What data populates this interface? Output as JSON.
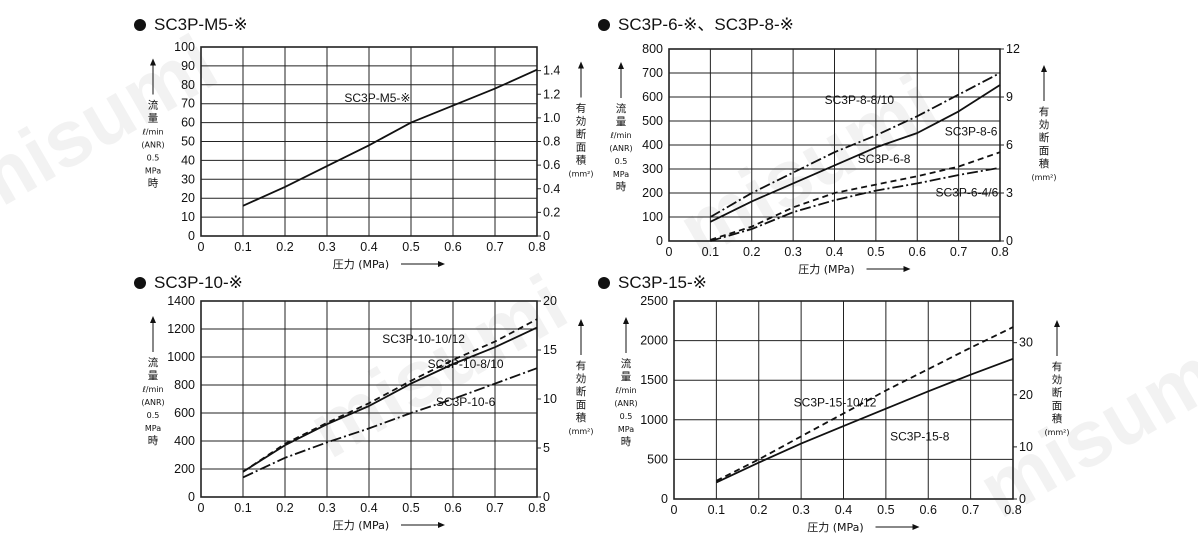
{
  "watermark": "misumi",
  "colors": {
    "line": "#111111",
    "grid": "#222222",
    "text": "#111111"
  },
  "chart_data": [
    {
      "type": "line",
      "title": "SC3P-M5-※",
      "xlabel": "圧力 (MPa)",
      "ylabel": [
        "流",
        "量",
        "ℓ/min",
        "(ANR)",
        "0.5",
        "MPa",
        "時"
      ],
      "y2label": [
        "有",
        "効",
        "断",
        "面",
        "積",
        "(mm²)"
      ],
      "xlim": [
        0,
        0.8
      ],
      "ylim": [
        0,
        100
      ],
      "y2lim": [
        0,
        1.6
      ],
      "xticks": [
        "0",
        "0.1",
        "0.2",
        "0.3",
        "0.4",
        "0.5",
        "0.6",
        "0.7",
        "0.8"
      ],
      "yticks": [
        "0",
        "10",
        "20",
        "30",
        "40",
        "50",
        "60",
        "70",
        "80",
        "90",
        "100"
      ],
      "y2ticks": [
        "0",
        "0.2",
        "0.4",
        "0.6",
        "0.8",
        "1.0",
        "1.2",
        "1.4"
      ],
      "grid": true,
      "series": [
        {
          "name": "SC3P-M5-※",
          "style": "solid",
          "x": [
            0.1,
            0.2,
            0.3,
            0.4,
            0.5,
            0.6,
            0.7,
            0.8
          ],
          "y": [
            16,
            26,
            37,
            48,
            60,
            69,
            78,
            88
          ]
        }
      ]
    },
    {
      "type": "line",
      "title": "SC3P-6-※、SC3P-8-※",
      "xlabel": "圧力 (MPa)",
      "ylabel": [
        "流",
        "量",
        "ℓ/min",
        "(ANR)",
        "0.5",
        "MPa",
        "時"
      ],
      "y2label": [
        "有",
        "効",
        "断",
        "面",
        "積",
        "(mm²)"
      ],
      "xlim": [
        0,
        0.8
      ],
      "ylim": [
        0,
        800
      ],
      "y2lim": [
        0,
        12
      ],
      "xticks": [
        "0",
        "0.1",
        "0.2",
        "0.3",
        "0.4",
        "0.5",
        "0.6",
        "0.7",
        "0.8"
      ],
      "yticks": [
        "0",
        "100",
        "200",
        "300",
        "400",
        "500",
        "600",
        "700",
        "800"
      ],
      "y2ticks": [
        "0",
        "3",
        "6",
        "9",
        "12"
      ],
      "grid": true,
      "series": [
        {
          "name": "SC3P-8-8/10",
          "style": "dashdot",
          "x": [
            0.1,
            0.2,
            0.3,
            0.4,
            0.5,
            0.6,
            0.7,
            0.8
          ],
          "y": [
            100,
            200,
            285,
            370,
            440,
            520,
            610,
            700
          ]
        },
        {
          "name": "SC3P-8-6",
          "style": "solid",
          "x": [
            0.1,
            0.2,
            0.3,
            0.4,
            0.5,
            0.6,
            0.7,
            0.8
          ],
          "y": [
            80,
            165,
            240,
            315,
            390,
            450,
            540,
            650
          ]
        },
        {
          "name": "SC3P-6-8",
          "style": "dashed",
          "x": [
            0.1,
            0.2,
            0.3,
            0.4,
            0.5,
            0.6,
            0.7,
            0.8
          ],
          "y": [
            5,
            60,
            140,
            200,
            235,
            270,
            310,
            370
          ]
        },
        {
          "name": "SC3P-6-4/6",
          "style": "dashdot",
          "x": [
            0.1,
            0.2,
            0.3,
            0.4,
            0.5,
            0.6,
            0.7,
            0.8
          ],
          "y": [
            0,
            50,
            120,
            170,
            210,
            240,
            275,
            305
          ]
        }
      ]
    },
    {
      "type": "line",
      "title": "SC3P-10-※",
      "xlabel": "圧力 (MPa)",
      "ylabel": [
        "流",
        "量",
        "ℓ/min",
        "(ANR)",
        "0.5",
        "MPa",
        "時"
      ],
      "y2label": [
        "有",
        "効",
        "断",
        "面",
        "積",
        "(mm²)"
      ],
      "xlim": [
        0,
        0.8
      ],
      "ylim": [
        0,
        1400
      ],
      "y2lim": [
        0,
        20
      ],
      "xticks": [
        "0",
        "0.1",
        "0.2",
        "0.3",
        "0.4",
        "0.5",
        "0.6",
        "0.7",
        "0.8"
      ],
      "yticks": [
        "0",
        "200",
        "400",
        "600",
        "800",
        "1000",
        "1200",
        "1400"
      ],
      "y2ticks": [
        "0",
        "5",
        "10",
        "15",
        "20"
      ],
      "grid": true,
      "series": [
        {
          "name": "SC3P-10-10/12",
          "style": "dashed",
          "x": [
            0.1,
            0.2,
            0.3,
            0.4,
            0.5,
            0.6,
            0.7,
            0.8
          ],
          "y": [
            180,
            380,
            530,
            670,
            830,
            980,
            1110,
            1270
          ]
        },
        {
          "name": "SC3P-10-8/10",
          "style": "solid",
          "x": [
            0.1,
            0.2,
            0.3,
            0.4,
            0.5,
            0.6,
            0.7,
            0.8
          ],
          "y": [
            180,
            370,
            520,
            650,
            810,
            950,
            1070,
            1210
          ]
        },
        {
          "name": "SC3P-10-6",
          "style": "dashdot",
          "x": [
            0.1,
            0.2,
            0.3,
            0.4,
            0.5,
            0.6,
            0.7,
            0.8
          ],
          "y": [
            140,
            280,
            390,
            490,
            600,
            700,
            810,
            920
          ]
        }
      ]
    },
    {
      "type": "line",
      "title": "SC3P-15-※",
      "xlabel": "圧力 (MPa)",
      "ylabel": [
        "流",
        "量",
        "ℓ/min",
        "(ANR)",
        "0.5",
        "MPa",
        "時"
      ],
      "y2label": [
        "有",
        "効",
        "断",
        "面",
        "積",
        "(mm²)"
      ],
      "xlim": [
        0,
        0.8
      ],
      "ylim": [
        0,
        2500
      ],
      "y2lim": [
        0,
        38
      ],
      "xticks": [
        "0",
        "0.1",
        "0.2",
        "0.3",
        "0.4",
        "0.5",
        "0.6",
        "0.7",
        "0.8"
      ],
      "yticks": [
        "0",
        "500",
        "1000",
        "1500",
        "2000",
        "2500"
      ],
      "y2ticks": [
        "0",
        "10",
        "20",
        "30"
      ],
      "grid": true,
      "series": [
        {
          "name": "SC3P-15-10/12",
          "style": "dashed",
          "x": [
            0.1,
            0.2,
            0.3,
            0.4,
            0.5,
            0.6,
            0.7,
            0.8
          ],
          "y": [
            230,
            500,
            790,
            1080,
            1370,
            1640,
            1910,
            2170
          ]
        },
        {
          "name": "SC3P-15-8",
          "style": "solid",
          "x": [
            0.1,
            0.2,
            0.3,
            0.4,
            0.5,
            0.6,
            0.7,
            0.8
          ],
          "y": [
            210,
            460,
            700,
            920,
            1140,
            1360,
            1570,
            1770
          ]
        }
      ]
    }
  ]
}
